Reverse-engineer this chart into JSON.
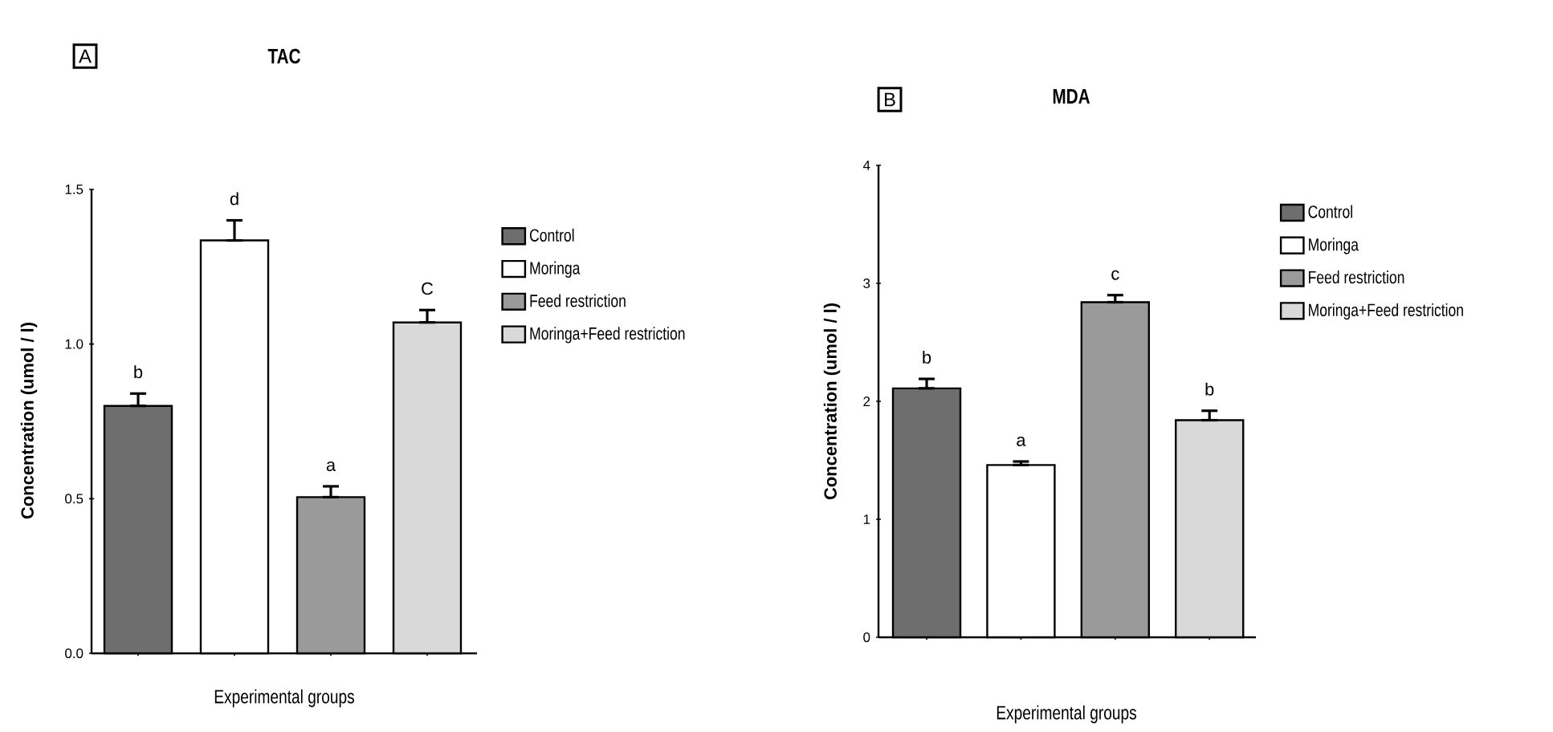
{
  "chart_data": [
    {
      "type": "bar",
      "title": "TAC",
      "xlabel": "Experimental groups",
      "ylabel": "Concentration (umol / l)",
      "annotations": [
        "A"
      ],
      "categories": [
        null,
        null,
        null,
        null
      ],
      "series": [
        {
          "name": "Control",
          "color": "#6e6e6e",
          "values": [
            0.8,
            null,
            null,
            null
          ],
          "errors": [
            [
              0.8,
              0.84
            ],
            null,
            null,
            null
          ],
          "value_labels": [
            "b",
            null,
            null,
            null
          ]
        },
        {
          "name": "Moringa",
          "color": "#ffffff",
          "values": [
            null,
            1.335,
            null,
            null
          ],
          "errors": [
            null,
            [
              1.335,
              1.4
            ],
            null,
            null
          ],
          "value_labels": [
            null,
            "d",
            null,
            null
          ]
        },
        {
          "name": "Feed restriction",
          "color": "#9a9a9a",
          "values": [
            null,
            null,
            0.505,
            null
          ],
          "errors": [
            null,
            null,
            [
              0.505,
              0.54
            ],
            null
          ],
          "value_labels": [
            null,
            null,
            "a",
            null
          ]
        },
        {
          "name": "Moringa+Feed restriction",
          "color": "#d9d9d9",
          "values": [
            null,
            null,
            null,
            1.07
          ],
          "errors": [
            null,
            null,
            null,
            [
              1.07,
              1.11
            ]
          ],
          "value_labels": [
            null,
            null,
            null,
            "C"
          ]
        }
      ],
      "ylim": [
        0,
        1.5
      ],
      "yticks": [
        {
          "value": 0,
          "label": "0.0"
        },
        {
          "value": 0.5,
          "label": "0.5"
        },
        {
          "value": 1.0,
          "label": "1.0"
        },
        {
          "value": 1.5,
          "label": "1.5"
        }
      ],
      "tick_labels": "y",
      "legend": "right",
      "grid": false
    },
    {
      "type": "bar",
      "title": "MDA",
      "xlabel": "Experimental groups",
      "ylabel": "Concentration (umol / l)",
      "annotations": [
        "B"
      ],
      "categories": [
        null,
        null,
        null,
        null
      ],
      "series": [
        {
          "name": "Control",
          "color": "#6e6e6e",
          "values": [
            2.11,
            null,
            null,
            null
          ],
          "errors": [
            [
              2.11,
              2.19
            ],
            null,
            null,
            null
          ],
          "value_labels": [
            "b",
            null,
            null,
            null
          ]
        },
        {
          "name": "Moringa",
          "color": "#ffffff",
          "values": [
            null,
            1.46,
            null,
            null
          ],
          "errors": [
            null,
            [
              1.46,
              1.49
            ],
            null,
            null
          ],
          "value_labels": [
            null,
            "a",
            null,
            null
          ]
        },
        {
          "name": "Feed restriction",
          "color": "#9a9a9a",
          "values": [
            null,
            null,
            2.84,
            null
          ],
          "errors": [
            null,
            null,
            [
              2.84,
              2.9
            ],
            null
          ],
          "value_labels": [
            null,
            null,
            "c",
            null
          ]
        },
        {
          "name": "Moringa+Feed restriction",
          "color": "#d9d9d9",
          "values": [
            null,
            null,
            null,
            1.84
          ],
          "errors": [
            null,
            null,
            null,
            [
              1.84,
              1.92
            ]
          ],
          "value_labels": [
            null,
            null,
            null,
            "b"
          ]
        }
      ],
      "ylim": [
        0,
        4
      ],
      "yticks": [
        0,
        1,
        2,
        3,
        4
      ],
      "tick_labels": "y",
      "legend": "right",
      "grid": false
    }
  ]
}
